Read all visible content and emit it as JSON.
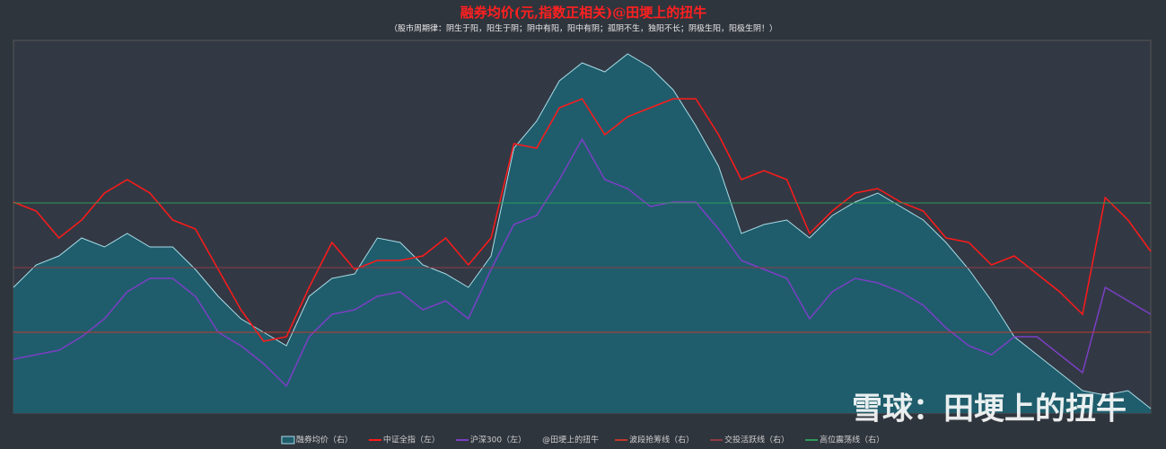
{
  "chart_data": {
    "type": "line",
    "title": "融券均价(元,指数正相关)@田埂上的扭牛",
    "subtitle": "（股市周期律：阴生于阳，阳生于阴；阴中有阳，阳中有阴；孤阴不生，独阳不长；阴极生阳，阳极生阴！）",
    "credit": "@田埂上的扭牛",
    "watermark": "雪球：田埂上的扭牛",
    "ylim": [
      2000,
      6980
    ],
    "y2lim": [
      0,
      16.6
    ],
    "series": [
      {
        "name": "融券均价（右）",
        "color": "#a8dce8",
        "fill": "#1f5d6c",
        "axis": "y2",
        "area": true,
        "values": [
          5.6,
          6.6,
          7.0,
          7.8,
          7.4,
          8.0,
          7.4,
          7.4,
          6.4,
          5.2,
          4.2,
          3.6,
          3.0,
          5.2,
          6.0,
          6.2,
          7.8,
          7.6,
          6.6,
          6.2,
          5.6,
          7.0,
          11.8,
          13.0,
          14.8,
          15.6,
          15.2,
          16.0,
          15.4,
          14.4,
          12.8,
          11.0,
          8.0,
          8.4,
          8.6,
          7.8,
          8.8,
          9.4,
          9.8,
          9.2,
          8.6,
          7.6,
          6.4,
          5.0,
          3.4,
          2.6,
          1.8,
          1.0,
          0.8,
          1.0,
          0.2
        ]
      },
      {
        "name": "中证全指（左）",
        "color": "#ff1a1a",
        "values": [
          4820,
          4700,
          4340,
          4580,
          4940,
          5120,
          4940,
          4580,
          4460,
          3920,
          3380,
          2960,
          3020,
          3680,
          4280,
          3920,
          4040,
          4040,
          4100,
          4340,
          3980,
          4340,
          5600,
          5540,
          6080,
          6200,
          5720,
          5960,
          6080,
          6200,
          6200,
          5720,
          5120,
          5240,
          5120,
          4400,
          4700,
          4940,
          5000,
          4820,
          4700,
          4340,
          4280,
          3980,
          4100,
          3860,
          3620,
          3320,
          4880,
          4580,
          4160
        ]
      },
      {
        "name": "沪深300（左）",
        "color": "#7b3fc4",
        "values": [
          2720,
          2780,
          2840,
          3020,
          3260,
          3620,
          3800,
          3800,
          3560,
          3080,
          2900,
          2660,
          2360,
          3020,
          3320,
          3380,
          3560,
          3620,
          3380,
          3500,
          3260,
          3920,
          4520,
          4640,
          5120,
          5660,
          5120,
          5000,
          4760,
          4820,
          4820,
          4460,
          4040,
          3920,
          3800,
          3260,
          3620,
          3800,
          3740,
          3620,
          3440,
          3140,
          2900,
          2780,
          3020,
          3020,
          2780,
          2540,
          3680,
          3500,
          3320
        ]
      }
    ],
    "lines": [
      {
        "name": "波段抢筹线（右）",
        "color": "#c0392b",
        "value": 3.6
      },
      {
        "name": "交投活跃线（右）",
        "color": "#8e3b46",
        "value": 6.48
      },
      {
        "name": "高位震荡线（右）",
        "color": "#2e9b5a",
        "value": 9.36
      }
    ]
  }
}
